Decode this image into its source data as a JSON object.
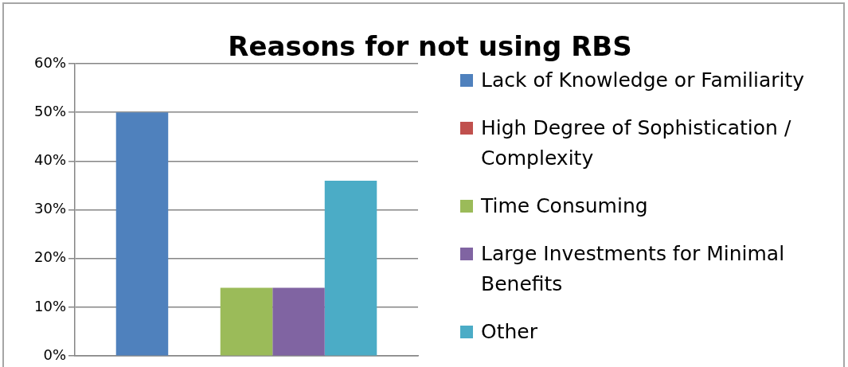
{
  "chart_data": {
    "type": "bar",
    "title": "Reasons for not using RBS",
    "categories": [
      null
    ],
    "series": [
      {
        "name": "Lack of Knowledge or Familiarity",
        "color": "#4f81bd",
        "values": [
          50
        ]
      },
      {
        "name": "High Degree of Sophistication / Complexity",
        "color": "#c0504d",
        "values": [
          0
        ]
      },
      {
        "name": "Time Consuming",
        "color": "#9bbb59",
        "values": [
          14
        ]
      },
      {
        "name": "Large Investments for Minimal Benefits",
        "color": "#8064a2",
        "values": [
          14
        ]
      },
      {
        "name": "Other",
        "color": "#4bacc6",
        "values": [
          36
        ]
      }
    ],
    "ylim": [
      0,
      60
    ],
    "yticks": [
      {
        "value": 0,
        "label": "0%"
      },
      {
        "value": 10,
        "label": "10%"
      },
      {
        "value": 20,
        "label": "20%"
      },
      {
        "value": 30,
        "label": "30%"
      },
      {
        "value": 40,
        "label": "40%"
      },
      {
        "value": 50,
        "label": "50%"
      },
      {
        "value": 60,
        "label": "60%"
      }
    ],
    "grid": "y",
    "legend": "right"
  }
}
